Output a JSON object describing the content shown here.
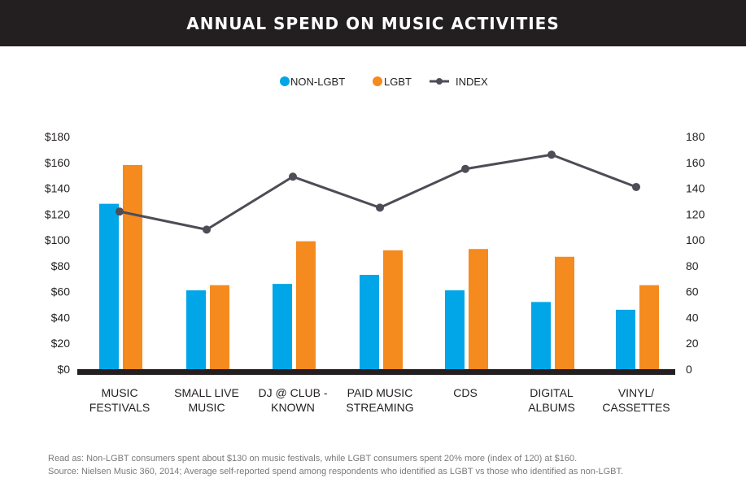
{
  "header": {
    "title": "ANNUAL SPEND ON MUSIC ACTIVITIES"
  },
  "footnotes": {
    "read_as": "Read as: Non-LGBT consumers spent about $130 on music festivals, while LGBT consumers spent 20% more (index of 120) at $160.",
    "source": "Source: Nielsen Music 360, 2014; Average self-reported spend among respondents who identified as LGBT vs those who identified as non-LGBT."
  },
  "colors": {
    "non_lgbt": "#00a6e8",
    "lgbt": "#f58a1f",
    "index": "#4d4d57",
    "baseline": "#231f20",
    "text": "#231f20"
  },
  "chart_data": {
    "type": "bar",
    "title": "ANNUAL SPEND ON MUSIC ACTIVITIES",
    "categories": [
      [
        "MUSIC",
        "FESTIVALS"
      ],
      [
        "SMALL LIVE",
        "MUSIC"
      ],
      [
        "DJ @ CLUB -",
        "KNOWN"
      ],
      [
        "PAID MUSIC",
        "STREAMING"
      ],
      [
        "CDS"
      ],
      [
        "DIGITAL",
        "ALBUMS"
      ],
      [
        "VINYL/",
        "CASSETTES"
      ]
    ],
    "series": [
      {
        "name": "NON-LGBT",
        "type": "bar",
        "axis": "left",
        "values": [
          128,
          61,
          66,
          73,
          61,
          52,
          46
        ]
      },
      {
        "name": "LGBT",
        "type": "bar",
        "axis": "left",
        "values": [
          158,
          65,
          99,
          92,
          93,
          87,
          65
        ]
      },
      {
        "name": "INDEX",
        "type": "line",
        "axis": "right",
        "values": [
          122,
          108,
          149,
          125,
          155,
          166,
          141
        ]
      }
    ],
    "y_left": {
      "ylim": [
        0,
        180
      ],
      "ticks": [
        "$0",
        "$20",
        "$40",
        "$60",
        "$80",
        "$100",
        "$120",
        "$140",
        "$160",
        "$180"
      ]
    },
    "y_right": {
      "ylim": [
        0,
        180
      ],
      "ticks": [
        "0",
        "20",
        "40",
        "60",
        "80",
        "100",
        "120",
        "140",
        "160",
        "180"
      ]
    },
    "legend": {
      "position": "top-center",
      "entries": [
        "NON-LGBT",
        "LGBT",
        "INDEX"
      ]
    },
    "grid": false
  }
}
